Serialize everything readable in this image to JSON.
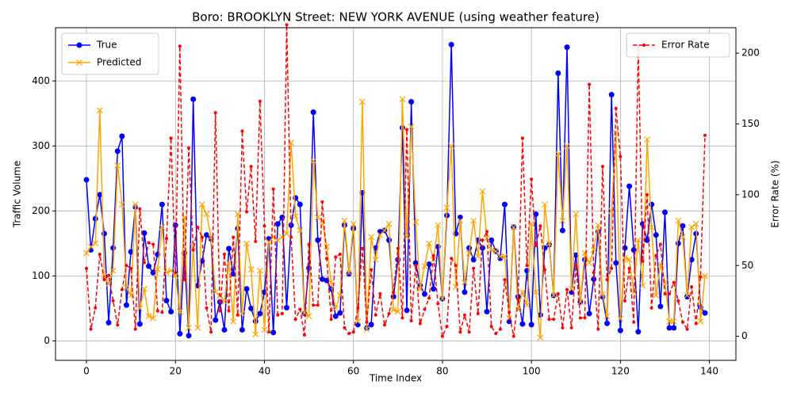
{
  "chart_data": {
    "type": "line",
    "title": "Boro: BROOKLYN Street: NEW YORK AVENUE (using weather feature)",
    "xlabel": "Time Index",
    "ylabel": "Traffic Volume",
    "y2label": "Error Rate (%)",
    "x": [
      0,
      1,
      2,
      3,
      4,
      5,
      6,
      7,
      8,
      9,
      10,
      11,
      12,
      13,
      14,
      15,
      16,
      17,
      18,
      19,
      20,
      21,
      22,
      23,
      24,
      25,
      26,
      27,
      28,
      29,
      30,
      31,
      32,
      33,
      34,
      35,
      36,
      37,
      38,
      39,
      40,
      41,
      42,
      43,
      44,
      45,
      46,
      47,
      48,
      49,
      50,
      51,
      52,
      53,
      54,
      55,
      56,
      57,
      58,
      59,
      60,
      61,
      62,
      63,
      64,
      65,
      66,
      67,
      68,
      69,
      70,
      71,
      72,
      73,
      74,
      75,
      76,
      77,
      78,
      79,
      80,
      81,
      82,
      83,
      84,
      85,
      86,
      87,
      88,
      89,
      90,
      91,
      92,
      93,
      94,
      95,
      96,
      97,
      98,
      99,
      100,
      101,
      102,
      103,
      104,
      105,
      106,
      107,
      108,
      109,
      110,
      111,
      112,
      113,
      114,
      115,
      116,
      117,
      118,
      119,
      120,
      121,
      122,
      123,
      124,
      125,
      126,
      127,
      128,
      129,
      130,
      131,
      132,
      133,
      134,
      135,
      136,
      137,
      138,
      139
    ],
    "series": [
      {
        "name": "True",
        "color": "#0000ff",
        "marker": "circle",
        "linestyle": "solid",
        "axis": "y",
        "values": [
          248,
          140,
          188,
          225,
          165,
          28,
          143,
          292,
          315,
          55,
          137,
          206,
          26,
          166,
          115,
          105,
          133,
          210,
          62,
          45,
          178,
          11,
          135,
          8,
          372,
          85,
          123,
          163,
          157,
          32,
          60,
          17,
          142,
          103,
          173,
          17,
          80,
          50,
          30,
          42,
          75,
          157,
          13,
          180,
          190,
          51,
          178,
          220,
          210,
          42,
          112,
          352,
          155,
          95,
          93,
          80,
          38,
          43,
          178,
          103,
          173,
          25,
          228,
          20,
          25,
          143,
          168,
          170,
          155,
          68,
          125,
          328,
          47,
          368,
          120,
          85,
          72,
          118,
          80,
          145,
          65,
          193,
          456,
          165,
          190,
          75,
          143,
          125,
          155,
          143,
          45,
          155,
          138,
          127,
          210,
          30,
          175,
          68,
          26,
          108,
          25,
          195,
          40,
          143,
          148,
          70,
          412,
          170,
          452,
          75,
          132,
          60,
          125,
          42,
          95,
          168,
          68,
          27,
          379,
          120,
          16,
          143,
          238,
          140,
          14,
          180,
          155,
          210,
          163,
          53,
          198,
          20,
          20,
          150,
          177,
          68,
          125,
          165,
          52,
          43
        ]
      },
      {
        "name": "Predicted",
        "color": "#ffa500",
        "marker": "x",
        "linestyle": "solid",
        "axis": "y",
        "values": [
          135,
          145,
          150,
          355,
          100,
          88,
          108,
          270,
          210,
          82,
          70,
          210,
          50,
          80,
          38,
          35,
          110,
          175,
          105,
          108,
          100,
          45,
          190,
          20,
          145,
          20,
          210,
          195,
          160,
          75,
          70,
          60,
          120,
          30,
          195,
          42,
          150,
          110,
          10,
          108,
          17,
          152,
          160,
          155,
          160,
          165,
          305,
          192,
          170,
          42,
          38,
          277,
          190,
          185,
          145,
          90,
          50,
          70,
          185,
          105,
          180,
          30,
          368,
          18,
          160,
          125,
          163,
          170,
          180,
          48,
          45,
          372,
          160,
          330,
          183,
          80,
          115,
          150,
          125,
          178,
          65,
          205,
          300,
          83,
          185,
          90,
          135,
          185,
          130,
          230,
          158,
          140,
          138,
          130,
          130,
          35,
          175,
          48,
          75,
          55,
          180,
          75,
          5,
          210,
          150,
          70,
          288,
          185,
          300,
          80,
          195,
          60,
          135,
          120,
          140,
          178,
          72,
          38,
          200,
          320,
          34,
          128,
          125,
          75,
          155,
          85,
          310,
          175,
          70,
          118,
          90,
          30,
          30,
          185,
          160,
          70,
          175,
          180,
          30,
          100
        ]
      },
      {
        "name": "Error Rate",
        "color": "#ff0000",
        "marker": "dot",
        "linestyle": "dashed",
        "axis": "y2",
        "values": [
          48,
          5,
          20,
          58,
          40,
          43,
          25,
          8,
          33,
          50,
          48,
          5,
          90,
          52,
          66,
          65,
          18,
          17,
          69,
          140,
          45,
          205,
          40,
          133,
          61,
          77,
          70,
          20,
          3,
          158,
          18,
          58,
          18,
          70,
          15,
          145,
          88,
          120,
          67,
          166,
          78,
          3,
          104,
          15,
          16,
          220,
          70,
          12,
          19,
          1,
          65,
          22,
          22,
          95,
          55,
          12,
          56,
          58,
          6,
          2,
          3,
          20,
          62,
          10,
          47,
          15,
          30,
          8,
          16,
          31,
          62,
          13,
          146,
          11,
          50,
          9,
          19,
          27,
          57,
          23,
          0,
          7,
          55,
          50,
          3,
          15,
          3,
          48,
          16,
          68,
          74,
          7,
          2,
          5,
          40,
          17,
          0,
          26,
          140,
          50,
          111,
          64,
          78,
          47,
          12,
          12,
          30,
          6,
          33,
          6,
          50,
          13,
          13,
          178,
          45,
          5,
          120,
          40,
          48,
          161,
          127,
          25,
          48,
          10,
          205,
          53,
          100,
          20,
          57,
          65,
          30,
          30,
          38,
          25,
          10,
          5,
          35,
          9,
          42,
          142
        ]
      }
    ],
    "xlim": [
      -6.95,
      145.95
    ],
    "xticks": [
      0,
      20,
      40,
      60,
      80,
      100,
      120,
      140
    ],
    "ylim": [
      -30,
      482
    ],
    "yticks": [
      0,
      100,
      200,
      300,
      400
    ],
    "y2lim": [
      -17,
      218
    ],
    "y2ticks": [
      0,
      50,
      100,
      150,
      200
    ],
    "grid": true,
    "legend": "upper left",
    "legend2": "upper right"
  }
}
